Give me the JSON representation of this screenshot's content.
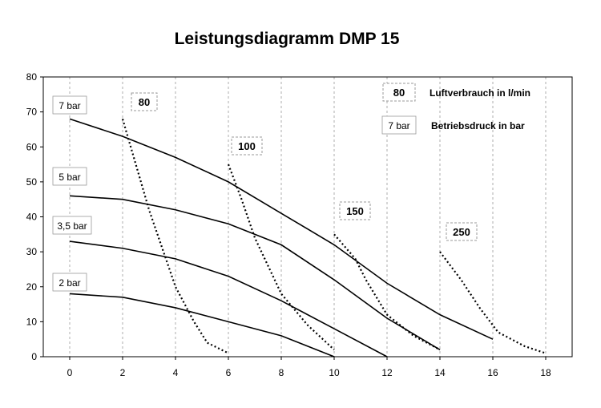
{
  "chart_data": {
    "type": "line",
    "title": "Leistungsdiagramm DMP 15",
    "xlabel": "",
    "ylabel": "",
    "xlim": [
      -1,
      19
    ],
    "ylim": [
      0,
      80
    ],
    "x_ticks": [
      0,
      2,
      4,
      6,
      8,
      10,
      12,
      14,
      16,
      18
    ],
    "y_ticks": [
      0,
      10,
      20,
      30,
      40,
      50,
      60,
      70,
      80
    ],
    "grid": "vertical dashed",
    "pressure_curves": [
      {
        "label": "7 bar",
        "points": [
          [
            0,
            68
          ],
          [
            2,
            63
          ],
          [
            4,
            57
          ],
          [
            6,
            50
          ],
          [
            8,
            41
          ],
          [
            10,
            32
          ],
          [
            12,
            21
          ],
          [
            14,
            12
          ],
          [
            16,
            5
          ]
        ]
      },
      {
        "label": "5 bar",
        "points": [
          [
            0,
            46
          ],
          [
            2,
            45
          ],
          [
            4,
            42
          ],
          [
            6,
            38
          ],
          [
            8,
            32
          ],
          [
            10,
            22
          ],
          [
            12,
            11
          ],
          [
            14,
            2
          ]
        ]
      },
      {
        "label": "3,5 bar",
        "points": [
          [
            0,
            33
          ],
          [
            2,
            31
          ],
          [
            4,
            28
          ],
          [
            6,
            23
          ],
          [
            8,
            16
          ],
          [
            10,
            8
          ],
          [
            12,
            0
          ]
        ]
      },
      {
        "label": "2 bar",
        "points": [
          [
            0,
            18
          ],
          [
            2,
            17
          ],
          [
            4,
            14
          ],
          [
            6,
            10
          ],
          [
            8,
            6
          ],
          [
            10,
            0
          ]
        ]
      }
    ],
    "air_consumption_curves": [
      {
        "label": "80",
        "points": [
          [
            2,
            68
          ],
          [
            2.5,
            55
          ],
          [
            3,
            42
          ],
          [
            4,
            20
          ],
          [
            4.7,
            10
          ],
          [
            5.2,
            4
          ],
          [
            6,
            1
          ]
        ]
      },
      {
        "label": "100",
        "points": [
          [
            6,
            55
          ],
          [
            6.5,
            45
          ],
          [
            7,
            34
          ],
          [
            8,
            18
          ],
          [
            9,
            9
          ],
          [
            10,
            2
          ]
        ]
      },
      {
        "label": "150",
        "points": [
          [
            10,
            35
          ],
          [
            10.8,
            28
          ],
          [
            11.2,
            22
          ],
          [
            12,
            12
          ],
          [
            13,
            6
          ],
          [
            14,
            2
          ]
        ]
      },
      {
        "label": "250",
        "points": [
          [
            14,
            30
          ],
          [
            14.8,
            22
          ],
          [
            15.5,
            14
          ],
          [
            16.2,
            7
          ],
          [
            17.2,
            3
          ],
          [
            18,
            1
          ]
        ]
      }
    ],
    "legend": [
      {
        "symbol": "80",
        "text": "Luftverbrauch in l/min"
      },
      {
        "symbol": "7 bar",
        "text": "Betriebsdruck in bar"
      }
    ],
    "legend_position": "top-right"
  }
}
